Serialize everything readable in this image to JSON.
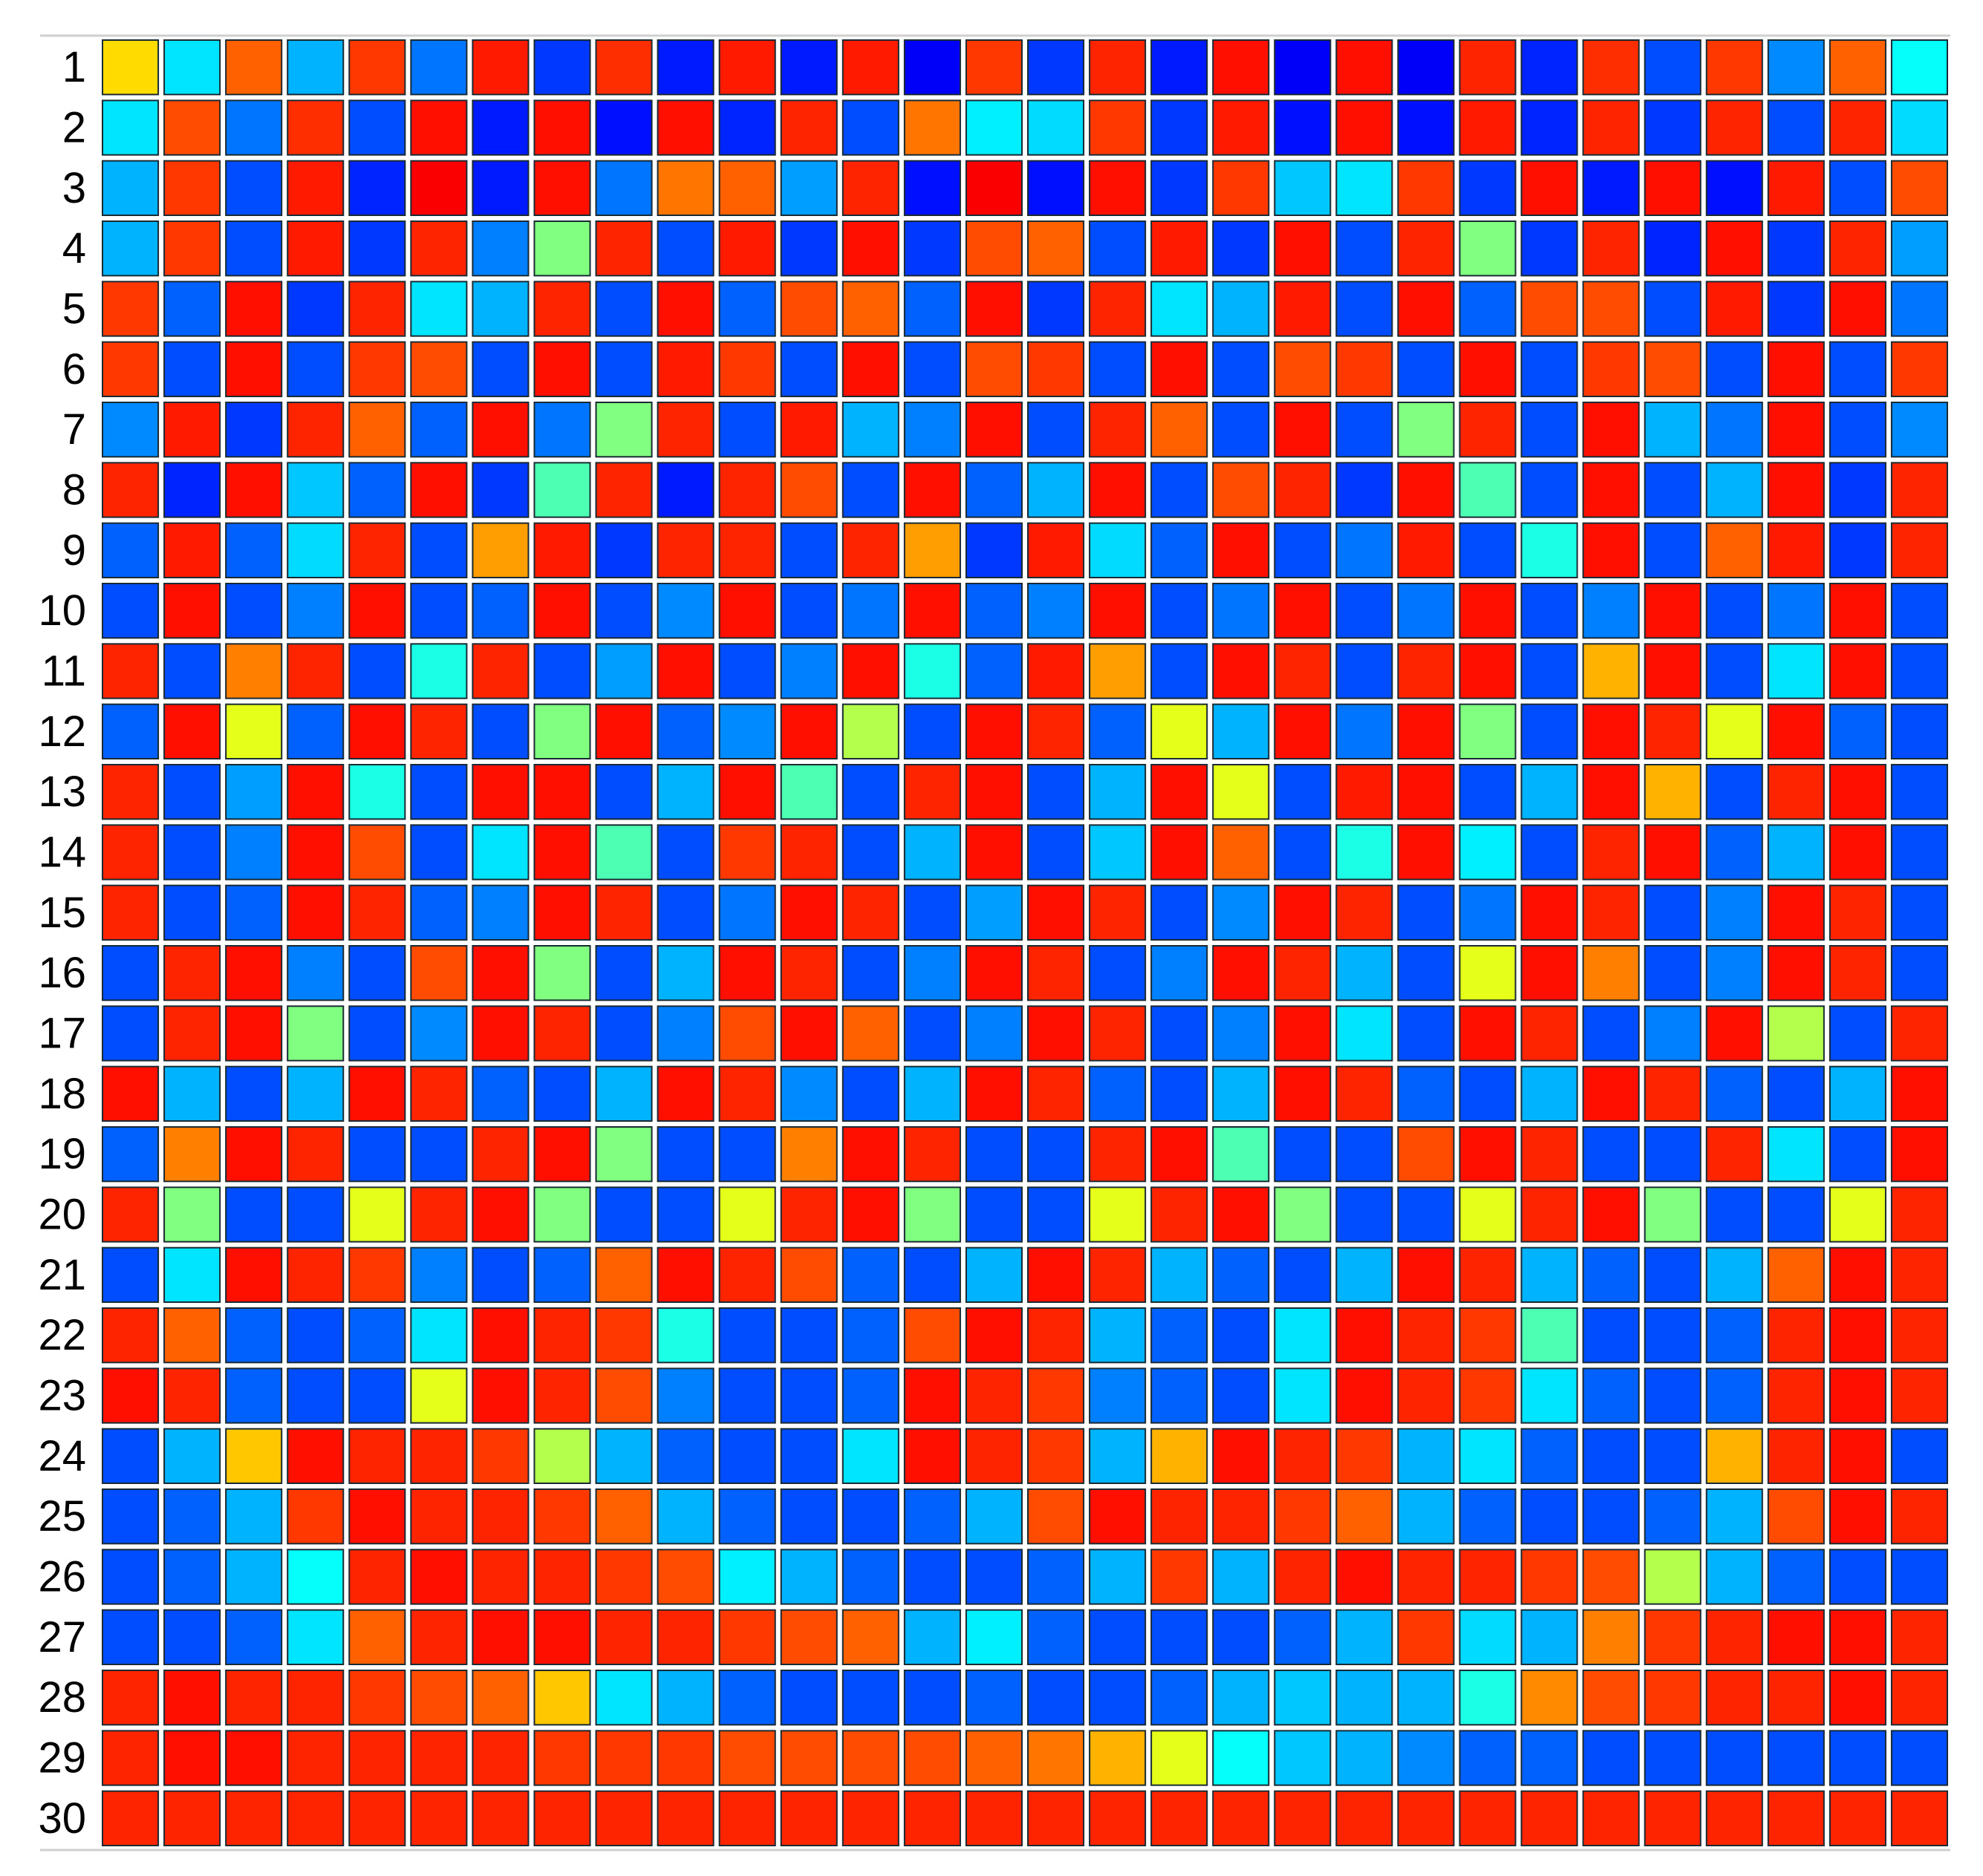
{
  "chart_data": {
    "type": "heatmap",
    "rows": 30,
    "cols": 30,
    "row_labels": [
      "1",
      "2",
      "3",
      "4",
      "5",
      "6",
      "7",
      "8",
      "9",
      "10",
      "11",
      "12",
      "13",
      "14",
      "15",
      "16",
      "17",
      "18",
      "19",
      "20",
      "21",
      "22",
      "23",
      "24",
      "25",
      "26",
      "27",
      "28",
      "29",
      "30"
    ],
    "legend": "none",
    "grid": true,
    "colormap": "jet",
    "value_range": [
      0,
      1
    ],
    "cells": [
      [
        0.66,
        0.35,
        0.78,
        0.3,
        0.82,
        0.24,
        0.85,
        0.18,
        0.83,
        0.15,
        0.85,
        0.15,
        0.85,
        0.12,
        0.82,
        0.18,
        0.84,
        0.15,
        0.86,
        0.12,
        0.86,
        0.12,
        0.84,
        0.16,
        0.83,
        0.2,
        0.82,
        0.26,
        0.78,
        0.38
      ],
      [
        0.35,
        0.8,
        0.24,
        0.83,
        0.2,
        0.86,
        0.15,
        0.86,
        0.14,
        0.86,
        0.16,
        0.84,
        0.2,
        0.76,
        0.36,
        0.34,
        0.82,
        0.18,
        0.85,
        0.14,
        0.86,
        0.14,
        0.85,
        0.16,
        0.84,
        0.18,
        0.84,
        0.2,
        0.84,
        0.34
      ],
      [
        0.3,
        0.82,
        0.2,
        0.85,
        0.16,
        0.88,
        0.15,
        0.86,
        0.24,
        0.76,
        0.78,
        0.28,
        0.84,
        0.14,
        0.88,
        0.14,
        0.86,
        0.18,
        0.82,
        0.32,
        0.35,
        0.82,
        0.18,
        0.86,
        0.15,
        0.86,
        0.14,
        0.85,
        0.2,
        0.8
      ],
      [
        0.3,
        0.82,
        0.2,
        0.85,
        0.18,
        0.84,
        0.25,
        0.5,
        0.84,
        0.2,
        0.85,
        0.18,
        0.86,
        0.18,
        0.8,
        0.78,
        0.2,
        0.85,
        0.18,
        0.86,
        0.2,
        0.84,
        0.5,
        0.18,
        0.84,
        0.16,
        0.86,
        0.18,
        0.84,
        0.28
      ],
      [
        0.82,
        0.22,
        0.86,
        0.18,
        0.84,
        0.35,
        0.3,
        0.84,
        0.2,
        0.86,
        0.22,
        0.8,
        0.78,
        0.22,
        0.86,
        0.18,
        0.84,
        0.35,
        0.3,
        0.85,
        0.2,
        0.86,
        0.22,
        0.8,
        0.8,
        0.2,
        0.85,
        0.18,
        0.86,
        0.24
      ],
      [
        0.82,
        0.2,
        0.86,
        0.2,
        0.82,
        0.8,
        0.2,
        0.86,
        0.2,
        0.85,
        0.82,
        0.2,
        0.86,
        0.2,
        0.8,
        0.82,
        0.2,
        0.86,
        0.2,
        0.8,
        0.82,
        0.2,
        0.86,
        0.2,
        0.82,
        0.8,
        0.2,
        0.86,
        0.2,
        0.82
      ],
      [
        0.26,
        0.85,
        0.18,
        0.84,
        0.78,
        0.22,
        0.86,
        0.24,
        0.5,
        0.84,
        0.2,
        0.85,
        0.3,
        0.25,
        0.86,
        0.2,
        0.84,
        0.78,
        0.2,
        0.86,
        0.2,
        0.5,
        0.84,
        0.2,
        0.86,
        0.3,
        0.24,
        0.86,
        0.2,
        0.26
      ],
      [
        0.84,
        0.16,
        0.86,
        0.32,
        0.22,
        0.86,
        0.18,
        0.45,
        0.84,
        0.15,
        0.84,
        0.8,
        0.2,
        0.86,
        0.22,
        0.3,
        0.86,
        0.2,
        0.8,
        0.84,
        0.18,
        0.86,
        0.45,
        0.2,
        0.86,
        0.2,
        0.3,
        0.86,
        0.18,
        0.84
      ],
      [
        0.22,
        0.85,
        0.22,
        0.34,
        0.84,
        0.2,
        0.72,
        0.85,
        0.18,
        0.84,
        0.84,
        0.2,
        0.84,
        0.72,
        0.18,
        0.85,
        0.34,
        0.22,
        0.86,
        0.2,
        0.24,
        0.85,
        0.2,
        0.4,
        0.86,
        0.2,
        0.78,
        0.85,
        0.18,
        0.84
      ],
      [
        0.2,
        0.86,
        0.2,
        0.25,
        0.86,
        0.2,
        0.22,
        0.86,
        0.2,
        0.26,
        0.86,
        0.2,
        0.24,
        0.86,
        0.22,
        0.25,
        0.86,
        0.2,
        0.24,
        0.86,
        0.2,
        0.24,
        0.86,
        0.2,
        0.25,
        0.86,
        0.2,
        0.24,
        0.86,
        0.2
      ],
      [
        0.84,
        0.2,
        0.75,
        0.84,
        0.2,
        0.4,
        0.84,
        0.2,
        0.28,
        0.86,
        0.2,
        0.25,
        0.86,
        0.4,
        0.22,
        0.85,
        0.72,
        0.2,
        0.86,
        0.84,
        0.2,
        0.84,
        0.86,
        0.2,
        0.7,
        0.86,
        0.2,
        0.35,
        0.86,
        0.2
      ],
      [
        0.22,
        0.86,
        0.6,
        0.22,
        0.86,
        0.84,
        0.2,
        0.5,
        0.86,
        0.22,
        0.26,
        0.86,
        0.55,
        0.2,
        0.86,
        0.84,
        0.22,
        0.6,
        0.3,
        0.86,
        0.24,
        0.86,
        0.5,
        0.2,
        0.86,
        0.84,
        0.6,
        0.86,
        0.22,
        0.2
      ],
      [
        0.84,
        0.2,
        0.28,
        0.86,
        0.4,
        0.2,
        0.86,
        0.86,
        0.2,
        0.3,
        0.86,
        0.45,
        0.2,
        0.84,
        0.86,
        0.2,
        0.3,
        0.86,
        0.6,
        0.2,
        0.85,
        0.86,
        0.2,
        0.3,
        0.86,
        0.7,
        0.2,
        0.84,
        0.86,
        0.2
      ],
      [
        0.84,
        0.2,
        0.25,
        0.86,
        0.8,
        0.2,
        0.35,
        0.86,
        0.45,
        0.2,
        0.82,
        0.84,
        0.2,
        0.3,
        0.86,
        0.2,
        0.32,
        0.86,
        0.78,
        0.2,
        0.4,
        0.86,
        0.36,
        0.2,
        0.84,
        0.86,
        0.22,
        0.3,
        0.86,
        0.2
      ],
      [
        0.84,
        0.2,
        0.22,
        0.86,
        0.84,
        0.22,
        0.25,
        0.86,
        0.84,
        0.2,
        0.24,
        0.86,
        0.84,
        0.2,
        0.28,
        0.86,
        0.84,
        0.2,
        0.26,
        0.86,
        0.84,
        0.2,
        0.24,
        0.86,
        0.84,
        0.2,
        0.25,
        0.86,
        0.84,
        0.2
      ],
      [
        0.2,
        0.84,
        0.86,
        0.25,
        0.2,
        0.8,
        0.86,
        0.5,
        0.2,
        0.3,
        0.86,
        0.84,
        0.2,
        0.25,
        0.86,
        0.84,
        0.2,
        0.25,
        0.86,
        0.84,
        0.3,
        0.2,
        0.6,
        0.86,
        0.75,
        0.2,
        0.25,
        0.86,
        0.84,
        0.2
      ],
      [
        0.2,
        0.84,
        0.86,
        0.5,
        0.2,
        0.26,
        0.86,
        0.84,
        0.2,
        0.25,
        0.8,
        0.86,
        0.78,
        0.2,
        0.25,
        0.86,
        0.84,
        0.2,
        0.25,
        0.86,
        0.35,
        0.2,
        0.86,
        0.84,
        0.2,
        0.25,
        0.86,
        0.55,
        0.2,
        0.84
      ],
      [
        0.86,
        0.3,
        0.2,
        0.3,
        0.86,
        0.84,
        0.22,
        0.2,
        0.3,
        0.86,
        0.84,
        0.26,
        0.2,
        0.3,
        0.86,
        0.84,
        0.22,
        0.2,
        0.3,
        0.86,
        0.84,
        0.22,
        0.2,
        0.3,
        0.86,
        0.84,
        0.22,
        0.2,
        0.3,
        0.86
      ],
      [
        0.22,
        0.75,
        0.86,
        0.84,
        0.2,
        0.2,
        0.84,
        0.86,
        0.5,
        0.2,
        0.2,
        0.75,
        0.86,
        0.84,
        0.2,
        0.2,
        0.84,
        0.86,
        0.45,
        0.2,
        0.2,
        0.8,
        0.86,
        0.84,
        0.2,
        0.2,
        0.84,
        0.35,
        0.2,
        0.86
      ],
      [
        0.84,
        0.5,
        0.2,
        0.2,
        0.6,
        0.84,
        0.86,
        0.5,
        0.2,
        0.2,
        0.6,
        0.84,
        0.86,
        0.5,
        0.2,
        0.2,
        0.6,
        0.84,
        0.86,
        0.5,
        0.2,
        0.2,
        0.6,
        0.84,
        0.86,
        0.5,
        0.2,
        0.2,
        0.6,
        0.84
      ],
      [
        0.2,
        0.35,
        0.86,
        0.84,
        0.82,
        0.25,
        0.2,
        0.22,
        0.78,
        0.86,
        0.84,
        0.8,
        0.22,
        0.2,
        0.3,
        0.86,
        0.84,
        0.3,
        0.22,
        0.2,
        0.3,
        0.86,
        0.84,
        0.3,
        0.22,
        0.2,
        0.3,
        0.78,
        0.86,
        0.84
      ],
      [
        0.84,
        0.78,
        0.22,
        0.2,
        0.22,
        0.35,
        0.86,
        0.84,
        0.82,
        0.4,
        0.2,
        0.2,
        0.22,
        0.8,
        0.86,
        0.84,
        0.3,
        0.22,
        0.2,
        0.35,
        0.86,
        0.84,
        0.82,
        0.45,
        0.2,
        0.2,
        0.22,
        0.84,
        0.86,
        0.84
      ],
      [
        0.86,
        0.84,
        0.22,
        0.2,
        0.2,
        0.6,
        0.86,
        0.84,
        0.8,
        0.25,
        0.2,
        0.2,
        0.22,
        0.86,
        0.84,
        0.82,
        0.25,
        0.22,
        0.2,
        0.35,
        0.86,
        0.84,
        0.82,
        0.35,
        0.22,
        0.2,
        0.22,
        0.84,
        0.86,
        0.84
      ],
      [
        0.2,
        0.3,
        0.68,
        0.86,
        0.84,
        0.84,
        0.82,
        0.55,
        0.3,
        0.22,
        0.2,
        0.2,
        0.35,
        0.86,
        0.84,
        0.82,
        0.3,
        0.7,
        0.86,
        0.84,
        0.82,
        0.3,
        0.35,
        0.22,
        0.2,
        0.2,
        0.7,
        0.84,
        0.86,
        0.2
      ],
      [
        0.2,
        0.22,
        0.3,
        0.82,
        0.86,
        0.84,
        0.84,
        0.82,
        0.78,
        0.3,
        0.22,
        0.2,
        0.2,
        0.22,
        0.3,
        0.8,
        0.86,
        0.84,
        0.84,
        0.82,
        0.78,
        0.3,
        0.22,
        0.2,
        0.2,
        0.22,
        0.3,
        0.8,
        0.86,
        0.84
      ],
      [
        0.2,
        0.22,
        0.3,
        0.38,
        0.84,
        0.86,
        0.84,
        0.84,
        0.82,
        0.8,
        0.36,
        0.3,
        0.22,
        0.2,
        0.2,
        0.22,
        0.3,
        0.82,
        0.3,
        0.84,
        0.86,
        0.84,
        0.84,
        0.82,
        0.8,
        0.55,
        0.3,
        0.22,
        0.2,
        0.2
      ],
      [
        0.2,
        0.2,
        0.22,
        0.35,
        0.78,
        0.84,
        0.86,
        0.86,
        0.84,
        0.84,
        0.82,
        0.8,
        0.78,
        0.3,
        0.36,
        0.22,
        0.2,
        0.2,
        0.2,
        0.22,
        0.3,
        0.82,
        0.34,
        0.3,
        0.75,
        0.82,
        0.84,
        0.86,
        0.86,
        0.84
      ],
      [
        0.84,
        0.86,
        0.84,
        0.84,
        0.82,
        0.8,
        0.78,
        0.68,
        0.35,
        0.3,
        0.22,
        0.2,
        0.2,
        0.2,
        0.22,
        0.2,
        0.2,
        0.22,
        0.3,
        0.32,
        0.3,
        0.3,
        0.4,
        0.74,
        0.8,
        0.82,
        0.84,
        0.84,
        0.86,
        0.84
      ],
      [
        0.84,
        0.86,
        0.86,
        0.84,
        0.84,
        0.84,
        0.84,
        0.82,
        0.82,
        0.82,
        0.8,
        0.8,
        0.8,
        0.8,
        0.78,
        0.76,
        0.7,
        0.6,
        0.38,
        0.32,
        0.3,
        0.26,
        0.22,
        0.22,
        0.2,
        0.2,
        0.2,
        0.2,
        0.2,
        0.2
      ],
      [
        0.84,
        0.84,
        0.84,
        0.84,
        0.84,
        0.84,
        0.84,
        0.84,
        0.84,
        0.84,
        0.84,
        0.84,
        0.84,
        0.84,
        0.84,
        0.84,
        0.84,
        0.84,
        0.84,
        0.84,
        0.84,
        0.84,
        0.84,
        0.84,
        0.84,
        0.84,
        0.84,
        0.84,
        0.84,
        0.84
      ]
    ]
  }
}
